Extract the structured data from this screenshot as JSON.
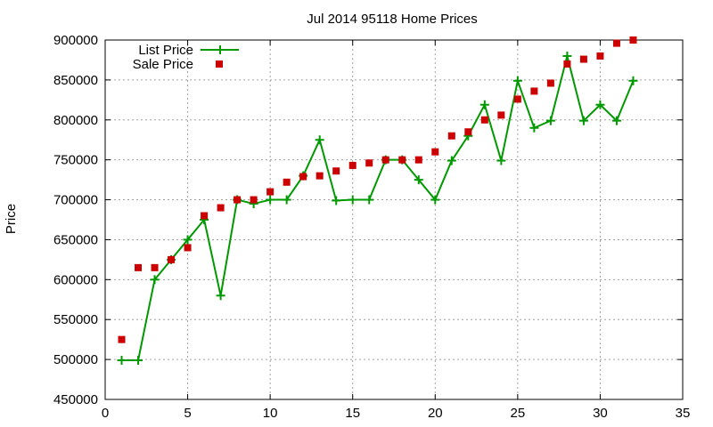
{
  "chart_data": {
    "type": "line",
    "title": "Jul 2014 95118 Home Prices",
    "xlabel": "",
    "ylabel": "Price",
    "xlim": [
      0,
      35
    ],
    "ylim": [
      450000,
      900000
    ],
    "x_ticks": [
      0,
      5,
      10,
      15,
      20,
      25,
      30,
      35
    ],
    "y_ticks": [
      450000,
      500000,
      550000,
      600000,
      650000,
      700000,
      750000,
      800000,
      850000,
      900000
    ],
    "x_tick_labels": [
      "0",
      "5",
      "10",
      "15",
      "20",
      "25",
      "30",
      "35"
    ],
    "y_tick_labels": [
      "450000",
      "500000",
      "550000",
      "600000",
      "650000",
      "700000",
      "750000",
      "800000",
      "850000",
      "900000"
    ],
    "grid": true,
    "legend_position": "top-left",
    "series": [
      {
        "name": "List Price",
        "style": "line-with-plus-markers",
        "color": "#009900",
        "x": [
          1,
          2,
          3,
          4,
          5,
          6,
          7,
          8,
          9,
          10,
          11,
          12,
          13,
          14,
          15,
          16,
          17,
          18,
          19,
          20,
          21,
          22,
          23,
          24,
          25,
          26,
          27,
          28,
          29,
          30,
          31,
          32
        ],
        "values": [
          499000,
          499000,
          600000,
          625000,
          650000,
          675000,
          580000,
          700000,
          695000,
          700000,
          700000,
          730000,
          775000,
          699000,
          700000,
          700000,
          750000,
          750000,
          725000,
          700000,
          749000,
          780000,
          819000,
          749000,
          849000,
          790000,
          799000,
          880000,
          799000,
          819000,
          799000,
          849000
        ]
      },
      {
        "name": "Sale Price",
        "style": "square-markers",
        "color": "#cc0000",
        "x": [
          1,
          2,
          3,
          4,
          5,
          6,
          7,
          8,
          9,
          10,
          11,
          12,
          13,
          14,
          15,
          16,
          17,
          18,
          19,
          20,
          21,
          22,
          23,
          24,
          25,
          26,
          27,
          28,
          29,
          30,
          31,
          32
        ],
        "values": [
          525000,
          615000,
          615000,
          625000,
          640000,
          680000,
          690000,
          700000,
          700000,
          710000,
          722000,
          729000,
          730000,
          736000,
          743000,
          746000,
          750000,
          750000,
          750000,
          760000,
          780000,
          785000,
          800000,
          806000,
          826000,
          836000,
          846000,
          870000,
          876000,
          880000,
          896000,
          900000
        ]
      }
    ]
  }
}
